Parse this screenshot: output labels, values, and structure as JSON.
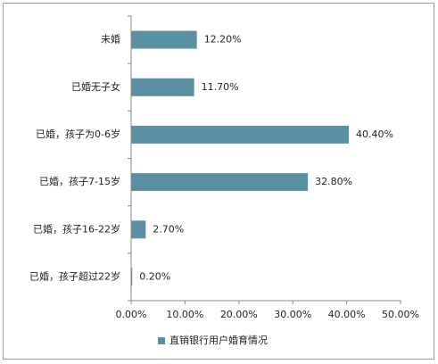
{
  "chart_data": {
    "type": "hbar",
    "categories": [
      "未婚",
      "已婚无子女",
      "已婚，孩子为0-6岁",
      "已婚，孩子7-15岁",
      "已婚，孩子16-22岁",
      "已婚，孩子超过22岁"
    ],
    "series": [
      {
        "name": "直销银行用户婚育情况",
        "color": "#5b8fa3",
        "values": [
          12.2,
          11.7,
          40.4,
          32.8,
          2.7,
          0.2
        ],
        "value_labels": [
          "12.20%",
          "11.70%",
          "40.40%",
          "32.80%",
          "2.70%",
          "0.20%"
        ]
      }
    ],
    "xlim": [
      0,
      50
    ],
    "xticks": [
      {
        "value": 0,
        "label": "0.00%"
      },
      {
        "value": 10,
        "label": "10.00%"
      },
      {
        "value": 20,
        "label": "20.00%"
      },
      {
        "value": 30,
        "label": "30.00%"
      },
      {
        "value": 40,
        "label": "40.00%"
      },
      {
        "value": 50,
        "label": "50.00%"
      }
    ],
    "grid": false,
    "legend": "bottom"
  }
}
